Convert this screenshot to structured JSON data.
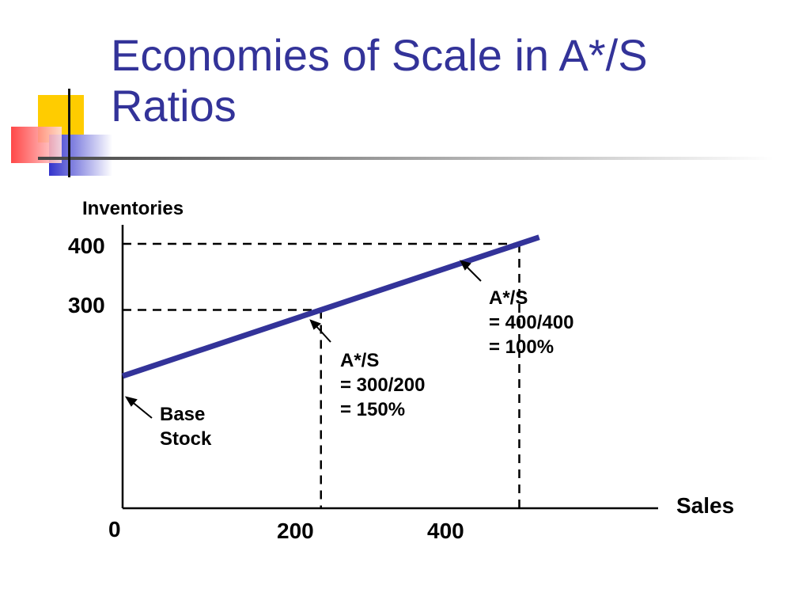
{
  "slide": {
    "title_line1": "Economies of Scale in A*/S",
    "title_line2": "Ratios"
  },
  "colors": {
    "title": "#333399",
    "line": "#333399",
    "accent_yellow": "#ffcc00",
    "accent_blue": "#3333cc",
    "accent_red": "#ff3333"
  },
  "chart_data": {
    "type": "line",
    "ylabel": "Inventories",
    "xlabel": "Sales",
    "x_ticks": [
      "0",
      "200",
      "400"
    ],
    "y_ticks": [
      "300",
      "400"
    ],
    "series": [
      {
        "x": [
          0,
          200,
          400,
          420
        ],
        "y": [
          200,
          300,
          400,
          410
        ]
      }
    ],
    "guides": [
      {
        "x": 200,
        "y": 300
      },
      {
        "x": 400,
        "y": 400
      }
    ],
    "annotations": [
      {
        "id": "base",
        "lines": [
          "Base",
          "Stock"
        ]
      },
      {
        "id": "a200",
        "lines": [
          "A*/S",
          "= 300/200",
          "= 150%"
        ]
      },
      {
        "id": "a400",
        "lines": [
          "A*/S",
          "= 400/400",
          "= 100%"
        ]
      }
    ],
    "xlim": [
      0,
      540
    ],
    "ylim": [
      0,
      400
    ],
    "grid": false
  }
}
